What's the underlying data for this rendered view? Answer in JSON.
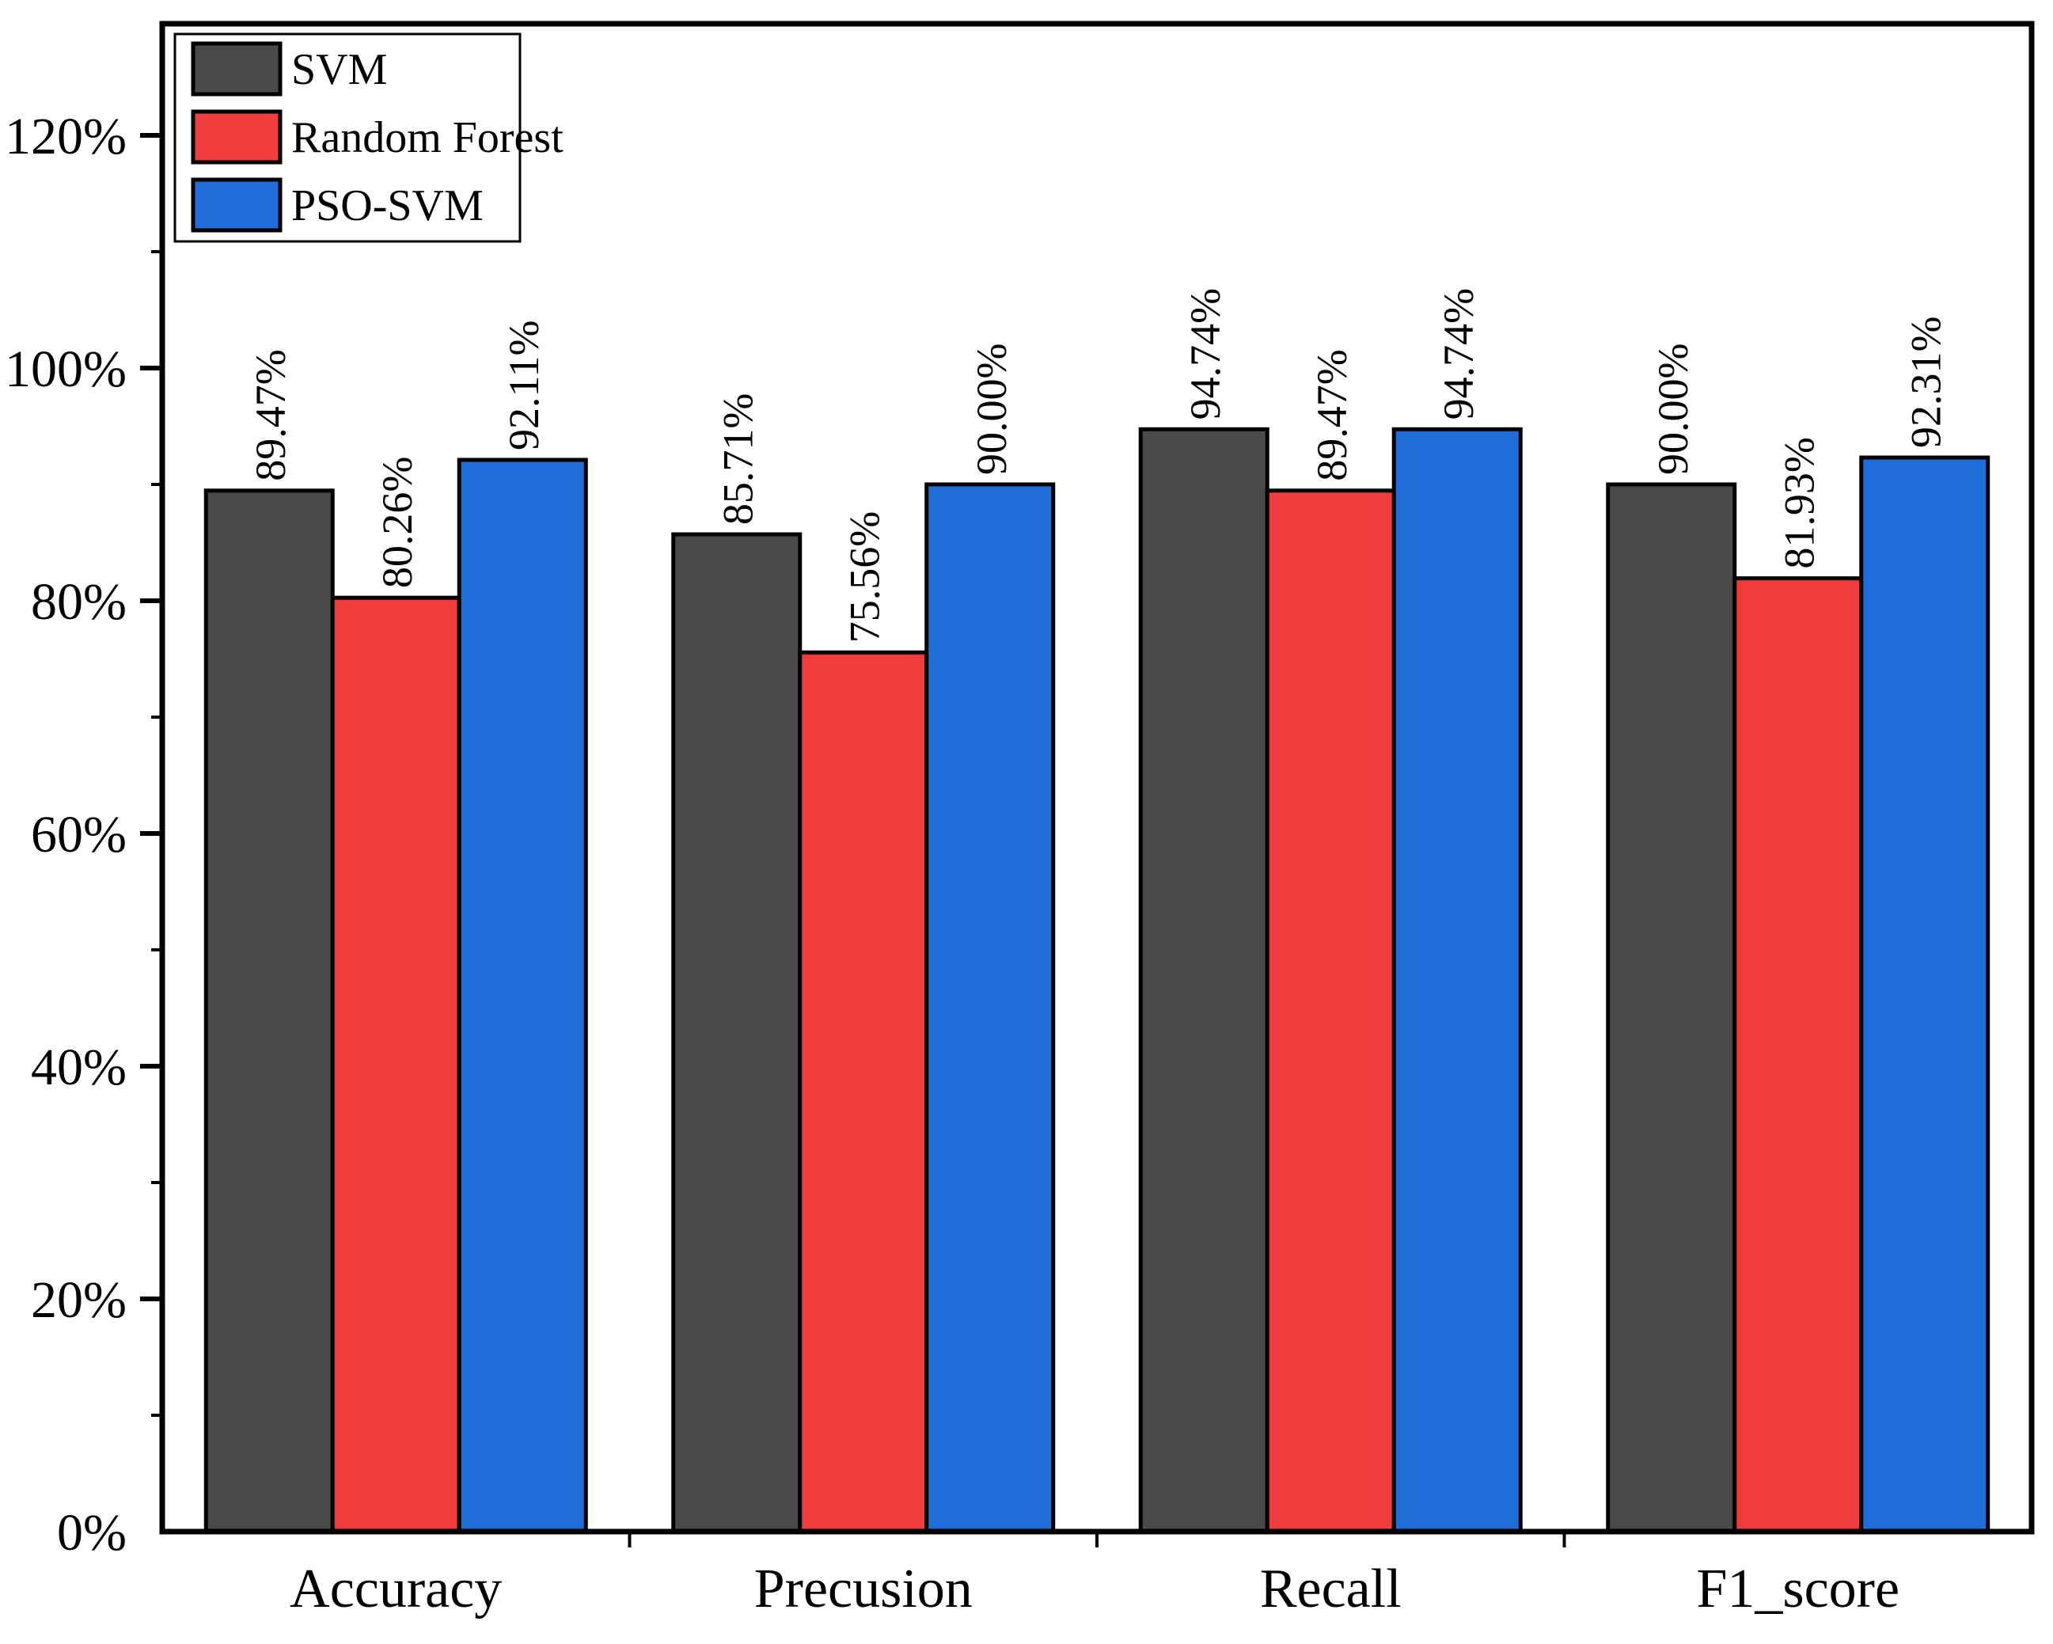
{
  "chart_data": {
    "type": "bar",
    "title": "",
    "categories": [
      "Accuracy",
      "Precusion",
      "Recall",
      "F1_score"
    ],
    "series": [
      {
        "name": "SVM",
        "color": "#4a4a4a",
        "values": [
          89.47,
          85.71,
          94.74,
          90.0
        ],
        "labels": [
          "89.47%",
          "85.71%",
          "94.74%",
          "90.00%"
        ]
      },
      {
        "name": "Random Forest",
        "color": "#f03c3c",
        "values": [
          80.26,
          75.56,
          89.47,
          81.93
        ],
        "labels": [
          "80.26%",
          "75.56%",
          "89.47%",
          "81.93%"
        ]
      },
      {
        "name": "PSO-SVM",
        "color": "#1f6ed8",
        "values": [
          92.11,
          90.0,
          94.74,
          92.31
        ],
        "labels": [
          "92.11%",
          "90.00%",
          "94.74%",
          "92.31%"
        ]
      }
    ],
    "y_axis": {
      "min": 0,
      "max": 129.5,
      "tick_values": [
        0,
        20,
        40,
        60,
        80,
        100,
        120
      ],
      "tick_labels": [
        "0%",
        "20%",
        "40%",
        "60%",
        "80%",
        "100%",
        "120%"
      ],
      "minor_tick_values": [
        10,
        30,
        50,
        70,
        90,
        110
      ]
    },
    "x_axis": {
      "label": ""
    },
    "legend": {
      "position": "top-left",
      "entries": [
        "SVM",
        "Random Forest",
        "PSO-SVM"
      ]
    },
    "grid": false,
    "bar_edge_color": "#000000",
    "frame_color": "#000000",
    "background_color": "#ffffff"
  }
}
